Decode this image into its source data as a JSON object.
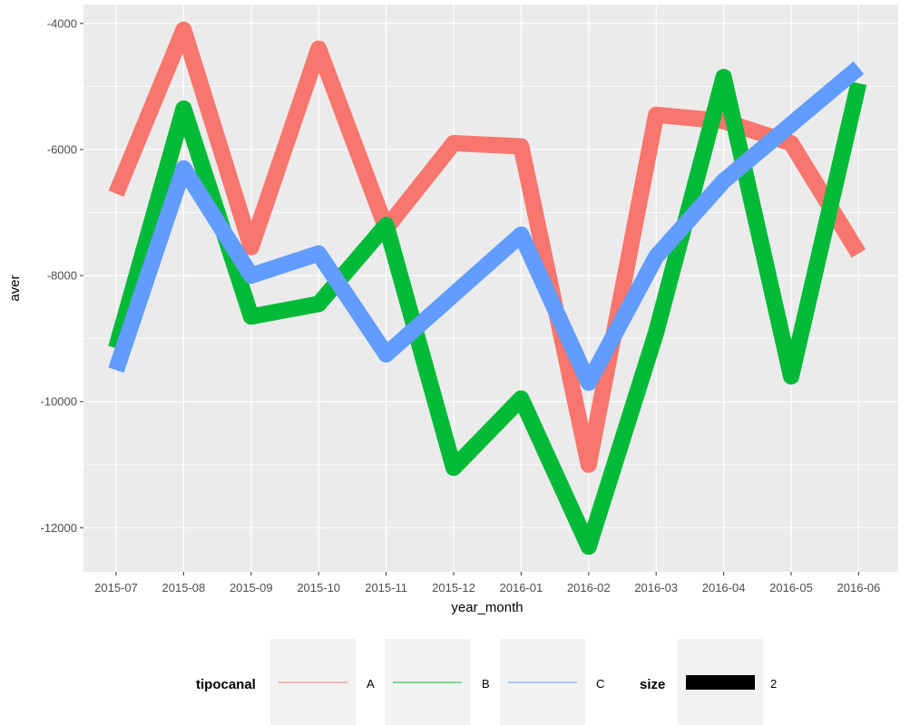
{
  "chart_data": {
    "type": "line",
    "xlabel": "year_month",
    "ylabel": "aver",
    "categories": [
      "2015-07",
      "2015-08",
      "2015-09",
      "2015-10",
      "2015-11",
      "2015-12",
      "2016-01",
      "2016-02",
      "2016-03",
      "2016-04",
      "2016-05",
      "2016-06"
    ],
    "yticks": [
      -4000,
      -6000,
      -8000,
      -10000,
      -12000
    ],
    "ylim": [
      -12700,
      -3700
    ],
    "grid": true,
    "legend_position": "bottom",
    "series": [
      {
        "name": "A",
        "color": "#F8766D",
        "values": [
          -6700,
          -4100,
          -7550,
          -4400,
          -7250,
          -5900,
          -5950,
          -11000,
          -5450,
          -5550,
          -5900,
          -7650
        ]
      },
      {
        "name": "B",
        "color": "#00BA38",
        "values": [
          -9150,
          -5350,
          -8650,
          -8450,
          -7200,
          -11050,
          -9950,
          -12300,
          -8900,
          -4850,
          -9600,
          -4950
        ]
      },
      {
        "name": "C",
        "color": "#619CFF",
        "values": [
          -9500,
          -6300,
          -8000,
          -7650,
          -9250,
          -8300,
          -7350,
          -9700,
          -7700,
          -6500,
          -5600,
          -4700
        ]
      }
    ],
    "legend": {
      "color_title": "tipocanal",
      "size_title": "size",
      "size_label": "2"
    }
  }
}
